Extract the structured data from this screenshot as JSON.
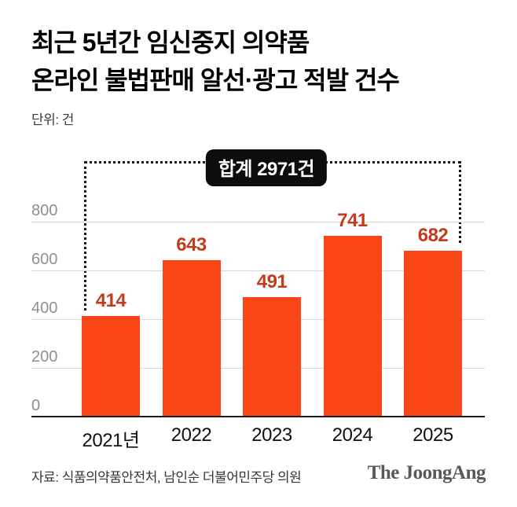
{
  "header": {
    "title_lines": [
      "최근 5년간 임신중지 의약품",
      "온라인 불법판매 알선·광고 적발 건수"
    ],
    "unit": "단위: 건"
  },
  "badge": {
    "label": "합계 2971건"
  },
  "chart_data": {
    "type": "bar",
    "title": "최근 5년간 임신중지 의약품 온라인 불법판매 알선·광고 적발 건수",
    "unit": "건",
    "categories": [
      "2021년",
      "2022",
      "2023",
      "2024",
      "2025"
    ],
    "values": [
      414,
      643,
      491,
      741,
      682
    ],
    "total": 2971,
    "total_label": "합계 2971건",
    "yticks": [
      0,
      200,
      400,
      600,
      800
    ],
    "ylim": [
      0,
      800
    ],
    "grid": true,
    "legend": false,
    "bar_color": "#fa4616",
    "value_label_color": "#c43a1c",
    "grid_color": "#d8d8d8",
    "axis_color": "#1c1c1c",
    "ytick_color": "#8f8f8f"
  },
  "footer": {
    "source": "자료: 식품의약품안전처, 남인순 더불어민주당 의원",
    "logo": "The JoongAng"
  }
}
